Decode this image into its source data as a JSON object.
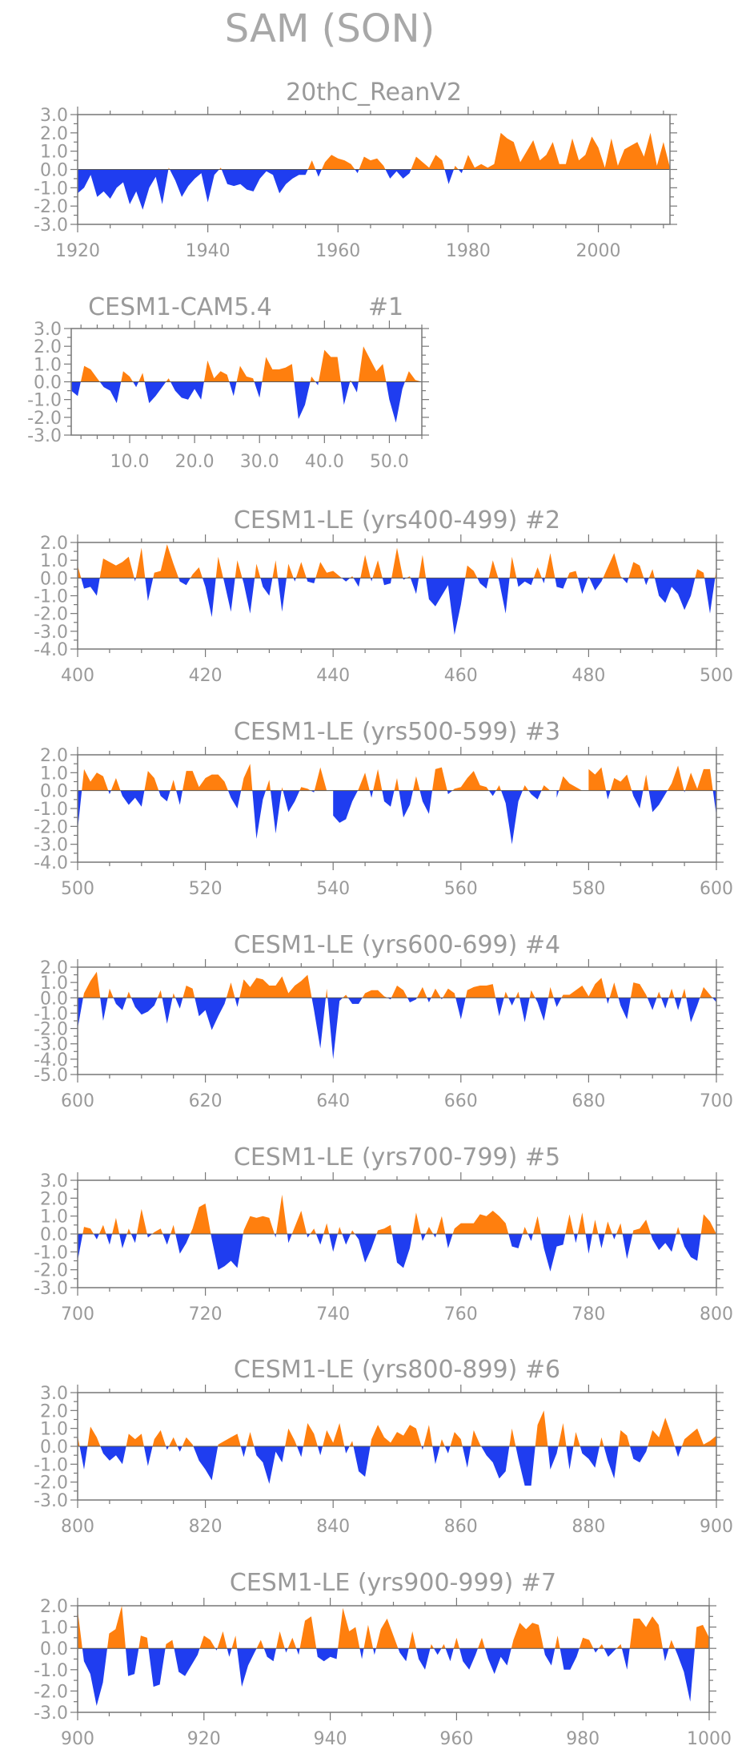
{
  "figure": {
    "title": "SAM (SON)",
    "colors": {
      "positive": "#ff7f0e",
      "negative": "#1f3df0",
      "axis": "#777777",
      "text": "#9a9a9a"
    }
  },
  "chart_data": [
    {
      "type": "area",
      "title": "20thC_ReanV2",
      "tag": "",
      "xlim": [
        1920,
        2011
      ],
      "ylim": [
        -3.0,
        3.0
      ],
      "xticks": [
        1920,
        1940,
        1960,
        1980,
        2000
      ],
      "xtick_labels": [
        "1920",
        "1940",
        "1960",
        "1980",
        "2000"
      ],
      "yticks": [
        -3,
        -2,
        -1,
        0,
        1,
        2,
        3
      ],
      "ytick_labels": [
        "-3.0",
        "-2.0",
        "-1.0",
        "0.0",
        "1.0",
        "2.0",
        "3.0"
      ],
      "x_start": 1920,
      "values": [
        -1.3,
        -1.0,
        -0.3,
        -1.5,
        -1.2,
        -1.6,
        -1.0,
        -0.7,
        -1.9,
        -1.2,
        -2.2,
        -1.0,
        -0.4,
        -1.9,
        0.1,
        -0.6,
        -1.5,
        -0.9,
        -0.5,
        -0.2,
        -1.8,
        -0.3,
        0.1,
        -0.8,
        -0.9,
        -0.8,
        -1.1,
        -1.2,
        -0.5,
        -0.1,
        -0.3,
        -1.3,
        -0.8,
        -0.5,
        -0.3,
        -0.3,
        0.5,
        -0.4,
        0.4,
        0.8,
        0.6,
        0.5,
        0.3,
        -0.2,
        0.7,
        0.5,
        0.6,
        0.2,
        -0.5,
        -0.1,
        -0.5,
        -0.2,
        0.7,
        0.4,
        0.1,
        0.8,
        0.5,
        -0.8,
        0.2,
        -0.2,
        0.8,
        0.1,
        0.3,
        0.1,
        0.3,
        2.0,
        1.7,
        1.5,
        0.4,
        1.0,
        1.6,
        0.5,
        0.8,
        1.5,
        0.3,
        0.3,
        1.7,
        0.5,
        0.8,
        1.8,
        1.2,
        0.1,
        1.7,
        0.2,
        1.1,
        1.3,
        1.5,
        0.7,
        2.0,
        0.2,
        1.5,
        0.1
      ]
    },
    {
      "type": "area",
      "title": "CESM1-CAM5.4",
      "tag": "#1",
      "xlim": [
        1,
        55
      ],
      "ylim": [
        -3.0,
        3.0
      ],
      "xticks": [
        10,
        20,
        30,
        40,
        50
      ],
      "xtick_labels": [
        "10.0",
        "20.0",
        "30.0",
        "40.0",
        "50.0"
      ],
      "yticks": [
        -3,
        -2,
        -1,
        0,
        1,
        2,
        3
      ],
      "ytick_labels": [
        "-3.0",
        "-2.0",
        "-1.0",
        "0.0",
        "1.0",
        "2.0",
        "3.0"
      ],
      "x_start": 1,
      "values": [
        -0.5,
        -0.8,
        0.9,
        0.7,
        0.2,
        -0.3,
        -0.5,
        -1.2,
        0.6,
        0.3,
        -0.3,
        0.5,
        -1.2,
        -0.8,
        -0.3,
        0.2,
        -0.5,
        -0.9,
        -1.0,
        -0.4,
        -1.0,
        1.2,
        0.2,
        0.6,
        0.4,
        -0.8,
        0.9,
        0.3,
        0.2,
        -0.9,
        1.4,
        0.7,
        0.7,
        0.8,
        1.0,
        -2.1,
        -1.3,
        0.3,
        -0.2,
        1.8,
        1.4,
        1.4,
        -1.3,
        0.1,
        -0.6,
        2.0,
        1.3,
        0.6,
        1.0,
        -1.0,
        -2.3,
        -0.4,
        0.6,
        0.1,
        0.0
      ]
    },
    {
      "type": "area",
      "title": "CESM1-LE (yrs400-499)",
      "tag": "#2",
      "xlim": [
        400,
        500
      ],
      "ylim": [
        -4.0,
        2.0
      ],
      "xticks": [
        400,
        420,
        440,
        460,
        480,
        500
      ],
      "xtick_labels": [
        "400",
        "420",
        "440",
        "460",
        "480",
        "500"
      ],
      "yticks": [
        -4,
        -3,
        -2,
        -1,
        0,
        1,
        2
      ],
      "ytick_labels": [
        "-4.0",
        "-3.0",
        "-2.0",
        "-1.0",
        "0.0",
        "1.0",
        "2.0"
      ],
      "x_start": 400,
      "values": [
        0.7,
        -0.6,
        -0.5,
        -1.0,
        1.1,
        0.9,
        0.7,
        0.9,
        1.2,
        -0.2,
        1.7,
        -1.3,
        0.3,
        0.4,
        1.9,
        0.8,
        -0.2,
        -0.4,
        0.2,
        0.6,
        -0.5,
        -2.2,
        1.2,
        -0.3,
        -1.9,
        1.0,
        -0.3,
        -2.0,
        0.8,
        -0.5,
        -1.0,
        1.0,
        -1.9,
        0.8,
        -0.2,
        0.9,
        -0.2,
        -0.3,
        0.9,
        0.3,
        0.4,
        0.1,
        -0.2,
        0.1,
        -0.5,
        1.3,
        -0.2,
        1.0,
        -0.4,
        -0.3,
        1.7,
        -0.1,
        0.1,
        -0.9,
        1.3,
        -1.2,
        -1.6,
        -1.0,
        -0.4,
        -3.2,
        -1.5,
        0.7,
        0.4,
        -0.3,
        -0.6,
        1.0,
        -0.2,
        -2.0,
        1.2,
        -0.5,
        -0.2,
        -0.4,
        0.6,
        -0.3,
        1.4,
        -0.5,
        -0.6,
        0.3,
        0.4,
        -0.9,
        0.1,
        -0.7,
        -0.2,
        0.6,
        1.4,
        0.1,
        -0.3,
        0.9,
        0.7,
        -0.4,
        0.5,
        -1.0,
        -1.4,
        -0.5,
        -0.9,
        -1.8,
        -1.0,
        0.5,
        0.3,
        -2.0,
        0.5
      ]
    },
    {
      "type": "area",
      "title": "CESM1-LE (yrs500-599)",
      "tag": "#3",
      "xlim": [
        500,
        600
      ],
      "ylim": [
        -4.0,
        2.0
      ],
      "xticks": [
        500,
        520,
        540,
        560,
        580,
        600
      ],
      "xtick_labels": [
        "500",
        "520",
        "540",
        "560",
        "580",
        "600"
      ],
      "yticks": [
        -4,
        -3,
        -2,
        -1,
        0,
        1,
        2
      ],
      "ytick_labels": [
        "-4.0",
        "-3.0",
        "-2.0",
        "-1.0",
        "0.0",
        "1.0",
        "2.0"
      ],
      "x_start": 500,
      "values": [
        -2.2,
        1.2,
        0.5,
        1.0,
        0.8,
        -0.2,
        0.7,
        -0.3,
        -0.8,
        -0.4,
        -0.9,
        1.1,
        0.7,
        -0.3,
        -0.6,
        0.6,
        -0.8,
        1.1,
        1.1,
        0.2,
        0.7,
        0.9,
        0.9,
        0.5,
        -0.4,
        -1.0,
        0.7,
        1.5,
        -2.7,
        -0.5,
        0.6,
        -2.4,
        0.2,
        -1.2,
        -0.6,
        0.2,
        0.1,
        -0.1,
        1.3,
        0.0,
        -1.4,
        -1.8,
        -1.6,
        -0.6,
        0.1,
        1.0,
        -0.4,
        1.2,
        -0.6,
        -0.9,
        0.7,
        -1.5,
        -0.8,
        0.8,
        -0.6,
        -1.3,
        1.2,
        1.3,
        -0.2,
        0.1,
        0.2,
        0.7,
        1.1,
        0.3,
        0.2,
        -0.3,
        0.3,
        -0.7,
        -3.0,
        -0.6,
        0.3,
        -0.2,
        -0.5,
        0.3,
        0.0,
        -0.4,
        0.8,
        0.4,
        0.2,
        0.0,
        1.2,
        0.9,
        1.3,
        -0.5,
        0.7,
        0.5,
        0.9,
        -0.3,
        -1.0,
        0.9,
        -1.2,
        -0.8,
        -0.2,
        0.4,
        1.4,
        -0.1,
        1.0,
        0.1,
        1.2,
        1.2,
        -1.4
      ]
    },
    {
      "type": "area",
      "title": "CESM1-LE (yrs600-699)",
      "tag": "#4",
      "xlim": [
        600,
        700
      ],
      "ylim": [
        -5.0,
        2.0
      ],
      "xticks": [
        600,
        620,
        640,
        660,
        680,
        700
      ],
      "xtick_labels": [
        "600",
        "620",
        "640",
        "660",
        "680",
        "700"
      ],
      "yticks": [
        -5,
        -4,
        -3,
        -2,
        -1,
        0,
        1,
        2
      ],
      "ytick_labels": [
        "-5.0",
        "-4.0",
        "-3.0",
        "-2.0",
        "-1.0",
        "0.0",
        "1.0",
        "2.0"
      ],
      "x_start": 600,
      "values": [
        -2.0,
        0.3,
        1.1,
        1.7,
        -1.5,
        0.6,
        -0.4,
        -0.8,
        0.4,
        -0.6,
        -1.1,
        -0.9,
        -0.5,
        0.5,
        -1.7,
        0.3,
        -0.7,
        0.8,
        0.6,
        -1.2,
        -0.8,
        -2.1,
        -1.2,
        -0.4,
        1.0,
        -0.6,
        1.2,
        0.7,
        1.3,
        1.2,
        0.8,
        0.8,
        1.4,
        0.3,
        0.8,
        1.1,
        1.5,
        -0.8,
        -3.3,
        0.6,
        -4.0,
        -0.2,
        0.2,
        -0.4,
        -0.4,
        0.3,
        0.5,
        0.5,
        0.1,
        -0.1,
        0.8,
        0.5,
        -0.3,
        -0.1,
        0.7,
        -0.3,
        0.6,
        -0.1,
        0.6,
        0.3,
        -1.4,
        0.5,
        0.7,
        0.8,
        0.8,
        0.9,
        -1.2,
        0.4,
        -0.5,
        0.4,
        -1.6,
        0.5,
        -0.3,
        -1.5,
        0.7,
        -0.6,
        0.2,
        0.2,
        0.5,
        0.8,
        0.1,
        0.9,
        1.3,
        -0.4,
        1.0,
        -0.5,
        -1.4,
        1.0,
        0.9,
        0.2,
        -0.8,
        0.4,
        -0.7,
        0.6,
        -0.8,
        0.6,
        -1.6,
        -0.5,
        0.7,
        0.2,
        -0.3
      ]
    },
    {
      "type": "area",
      "title": "CESM1-LE (yrs700-799)",
      "tag": "#5",
      "xlim": [
        700,
        800
      ],
      "ylim": [
        -3.0,
        3.0
      ],
      "xticks": [
        700,
        720,
        740,
        760,
        780,
        800
      ],
      "xtick_labels": [
        "700",
        "720",
        "740",
        "760",
        "780",
        "800"
      ],
      "yticks": [
        -3,
        -2,
        -1,
        0,
        1,
        2,
        3
      ],
      "ytick_labels": [
        "-3.0",
        "-2.0",
        "-1.0",
        "0.0",
        "1.0",
        "2.0",
        "3.0"
      ],
      "x_start": 700,
      "values": [
        -1.5,
        0.4,
        0.3,
        -0.3,
        0.5,
        -0.6,
        0.9,
        -0.8,
        0.3,
        -0.5,
        1.4,
        -0.2,
        0.1,
        0.3,
        -0.6,
        0.5,
        -1.1,
        -0.5,
        0.3,
        1.5,
        1.7,
        -0.3,
        -2.0,
        -1.8,
        -1.5,
        -1.9,
        0.2,
        1.0,
        0.9,
        1.0,
        0.9,
        -0.2,
        2.2,
        -0.5,
        0.4,
        1.3,
        -0.2,
        0.3,
        -0.6,
        0.6,
        -1.0,
        0.4,
        -0.6,
        0.2,
        -0.3,
        -1.6,
        -0.8,
        0.2,
        0.3,
        0.5,
        -1.6,
        -1.9,
        -0.8,
        1.2,
        -0.4,
        0.4,
        -0.2,
        1.0,
        -0.8,
        0.3,
        0.6,
        0.6,
        0.6,
        1.1,
        1.0,
        1.3,
        1.0,
        0.6,
        -0.7,
        -0.8,
        0.4,
        -0.4,
        1.0,
        -0.8,
        -2.1,
        -0.7,
        -0.6,
        1.1,
        -0.5,
        1.2,
        -1.1,
        0.8,
        -0.8,
        0.7,
        -0.3,
        0.6,
        -1.4,
        0.2,
        0.3,
        0.8,
        -0.3,
        -0.9,
        -0.5,
        -1.0,
        0.4,
        -0.7,
        -1.3,
        -1.5,
        1.1,
        0.7,
        0.0
      ]
    },
    {
      "type": "area",
      "title": "CESM1-LE (yrs800-899)",
      "tag": "#6",
      "xlim": [
        800,
        900
      ],
      "ylim": [
        -3.0,
        3.0
      ],
      "xticks": [
        800,
        820,
        840,
        860,
        880,
        900
      ],
      "xtick_labels": [
        "800",
        "820",
        "840",
        "860",
        "880",
        "900"
      ],
      "yticks": [
        -3,
        -2,
        -1,
        0,
        1,
        2,
        3
      ],
      "ytick_labels": [
        "-3.0",
        "-2.0",
        "-1.0",
        "0.0",
        "1.0",
        "2.0",
        "3.0"
      ],
      "x_start": 800,
      "values": [
        0.6,
        -1.3,
        1.1,
        0.5,
        -0.4,
        -0.8,
        -0.5,
        -1.0,
        0.7,
        0.4,
        0.7,
        -1.1,
        0.4,
        0.9,
        -0.2,
        0.5,
        -0.3,
        0.5,
        0.1,
        -0.8,
        -1.3,
        -1.9,
        0.1,
        0.3,
        0.5,
        0.7,
        -0.6,
        0.8,
        -0.5,
        -0.9,
        -2.1,
        -0.3,
        -0.9,
        1.0,
        0.3,
        -0.6,
        1.3,
        0.7,
        -0.5,
        0.9,
        0.2,
        1.3,
        -0.4,
        0.3,
        -1.4,
        -1.7,
        0.4,
        1.2,
        0.5,
        0.2,
        0.8,
        0.6,
        1.2,
        1.0,
        -0.2,
        1.2,
        -1.0,
        0.4,
        -0.4,
        0.8,
        0.4,
        -1.2,
        0.9,
        0.1,
        -0.5,
        -0.9,
        -1.8,
        -1.4,
        1.0,
        -0.7,
        -2.2,
        -2.2,
        1.2,
        2.0,
        -1.3,
        -0.4,
        1.3,
        -1.3,
        0.8,
        -0.4,
        -0.7,
        -1.2,
        0.5,
        -0.8,
        -1.8,
        0.9,
        0.6,
        -0.7,
        -0.9,
        -0.3,
        0.9,
        0.5,
        1.6,
        0.6,
        -0.6,
        0.4,
        0.7,
        1.0,
        0.1,
        0.3,
        0.6
      ]
    },
    {
      "type": "area",
      "title": "CESM1-LE (yrs900-999)",
      "tag": "#7",
      "xlim": [
        900,
        1000
      ],
      "ylim": [
        -3.0,
        2.0
      ],
      "xticks": [
        900,
        920,
        940,
        960,
        980,
        1000
      ],
      "xtick_labels": [
        "900",
        "920",
        "940",
        "960",
        "980",
        "1000"
      ],
      "yticks": [
        -3,
        -2,
        -1,
        0,
        1,
        2
      ],
      "ytick_labels": [
        "-3.0",
        "-2.0",
        "-1.0",
        "0.0",
        "1.0",
        "2.0"
      ],
      "x_start": 900,
      "values": [
        1.8,
        -0.6,
        -1.2,
        -2.7,
        -1.6,
        0.7,
        0.9,
        2.0,
        -1.3,
        -1.2,
        0.6,
        0.5,
        -1.8,
        -1.7,
        0.2,
        0.4,
        -1.1,
        -1.3,
        -0.8,
        -0.3,
        0.6,
        0.4,
        -0.1,
        0.8,
        -0.4,
        0.6,
        -1.8,
        -0.8,
        -0.2,
        0.4,
        -0.4,
        -0.6,
        0.8,
        -0.2,
        0.5,
        -0.3,
        1.3,
        1.5,
        -0.4,
        -0.6,
        -0.4,
        -0.5,
        1.9,
        0.8,
        1.0,
        -0.5,
        1.1,
        -0.3,
        0.9,
        1.4,
        0.6,
        -0.2,
        -0.6,
        0.8,
        -0.5,
        -1.0,
        0.2,
        -0.3,
        0.2,
        -0.6,
        0.5,
        -0.6,
        -1.0,
        -0.3,
        0.5,
        -0.5,
        -1.2,
        -0.4,
        -0.8,
        0.4,
        1.2,
        0.9,
        1.2,
        1.1,
        -0.3,
        -0.8,
        0.6,
        -1.0,
        -1.0,
        -0.4,
        0.5,
        0.4,
        -0.2,
        0.2,
        -0.4,
        -0.1,
        0.2,
        -1.0,
        1.4,
        1.4,
        1.0,
        1.5,
        1.1,
        -0.6,
        0.4,
        -0.3,
        -1.1,
        -2.5,
        1.0,
        1.1,
        0.5
      ]
    }
  ]
}
